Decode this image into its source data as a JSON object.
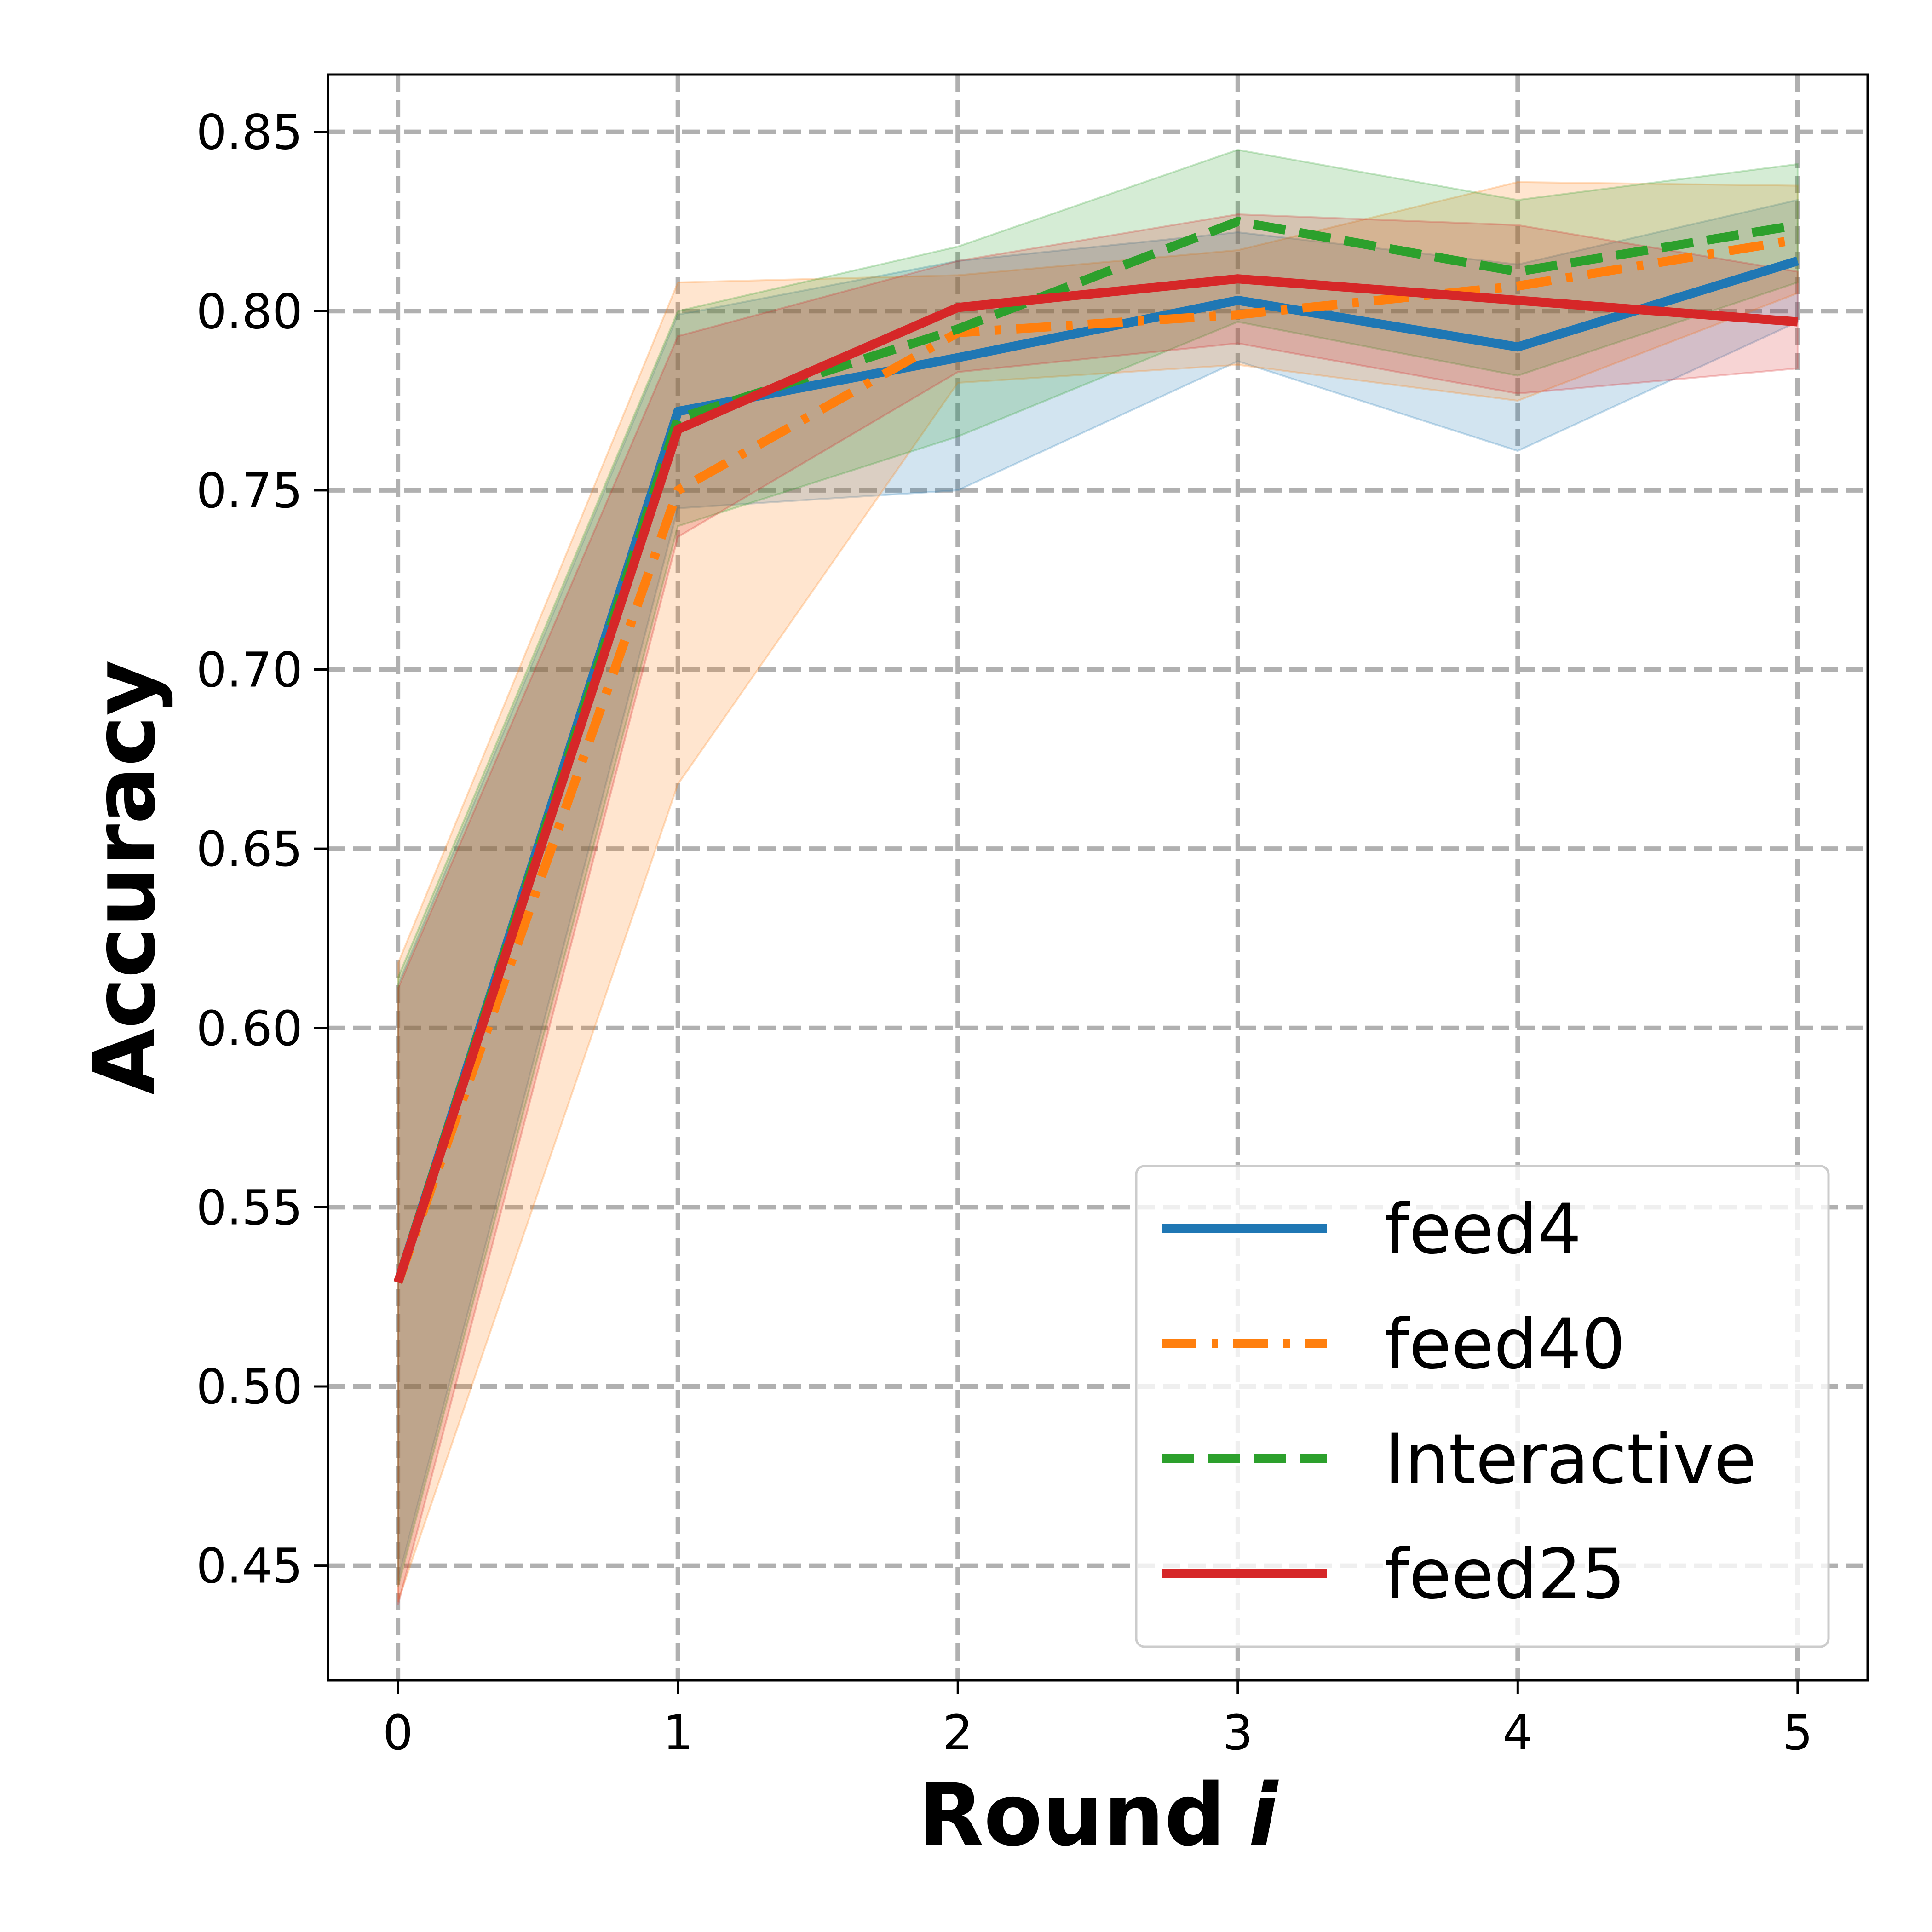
{
  "chart_data": {
    "type": "line",
    "xlabel": "Round",
    "xlabel_var": "i",
    "ylabel": "Accuracy",
    "x": [
      0,
      1,
      2,
      3,
      4,
      5
    ],
    "xticks": [
      "0",
      "1",
      "2",
      "3",
      "4",
      "5"
    ],
    "yticks": [
      0.45,
      0.5,
      0.55,
      0.6,
      0.65,
      0.7,
      0.75,
      0.8,
      0.85
    ],
    "ytick_labels": [
      "0.45",
      "0.50",
      "0.55",
      "0.60",
      "0.65",
      "0.70",
      "0.75",
      "0.80",
      "0.85"
    ],
    "xlim": [
      -0.25,
      5.25
    ],
    "ylim": [
      0.418,
      0.866
    ],
    "grid": true,
    "legend_position": "bottom-right",
    "series": [
      {
        "name": "feed4",
        "color": "#1f77b4",
        "dash": "solid",
        "values": [
          0.529,
          0.772,
          0.787,
          0.803,
          0.79,
          0.814
        ],
        "upper": [
          0.612,
          0.799,
          0.814,
          0.822,
          0.813,
          0.831
        ],
        "lower": [
          0.446,
          0.745,
          0.75,
          0.786,
          0.761,
          0.797
        ]
      },
      {
        "name": "feed40",
        "color": "#ff7f0e",
        "dash": "dashdot",
        "values": [
          0.529,
          0.75,
          0.794,
          0.799,
          0.807,
          0.82
        ],
        "upper": [
          0.618,
          0.808,
          0.81,
          0.817,
          0.836,
          0.835
        ],
        "lower": [
          0.44,
          0.668,
          0.78,
          0.785,
          0.775,
          0.805
        ]
      },
      {
        "name": "Interactive",
        "color": "#2ca02c",
        "dash": "dashed",
        "values": [
          0.529,
          0.77,
          0.795,
          0.825,
          0.811,
          0.824
        ],
        "upper": [
          0.614,
          0.8,
          0.818,
          0.845,
          0.831,
          0.841
        ],
        "lower": [
          0.444,
          0.74,
          0.765,
          0.797,
          0.782,
          0.808
        ]
      },
      {
        "name": "feed25",
        "color": "#d62728",
        "dash": "solid",
        "values": [
          0.529,
          0.767,
          0.801,
          0.809,
          0.803,
          0.797
        ],
        "upper": [
          0.611,
          0.793,
          0.814,
          0.827,
          0.824,
          0.811
        ],
        "lower": [
          0.439,
          0.737,
          0.783,
          0.791,
          0.777,
          0.784
        ]
      }
    ]
  }
}
